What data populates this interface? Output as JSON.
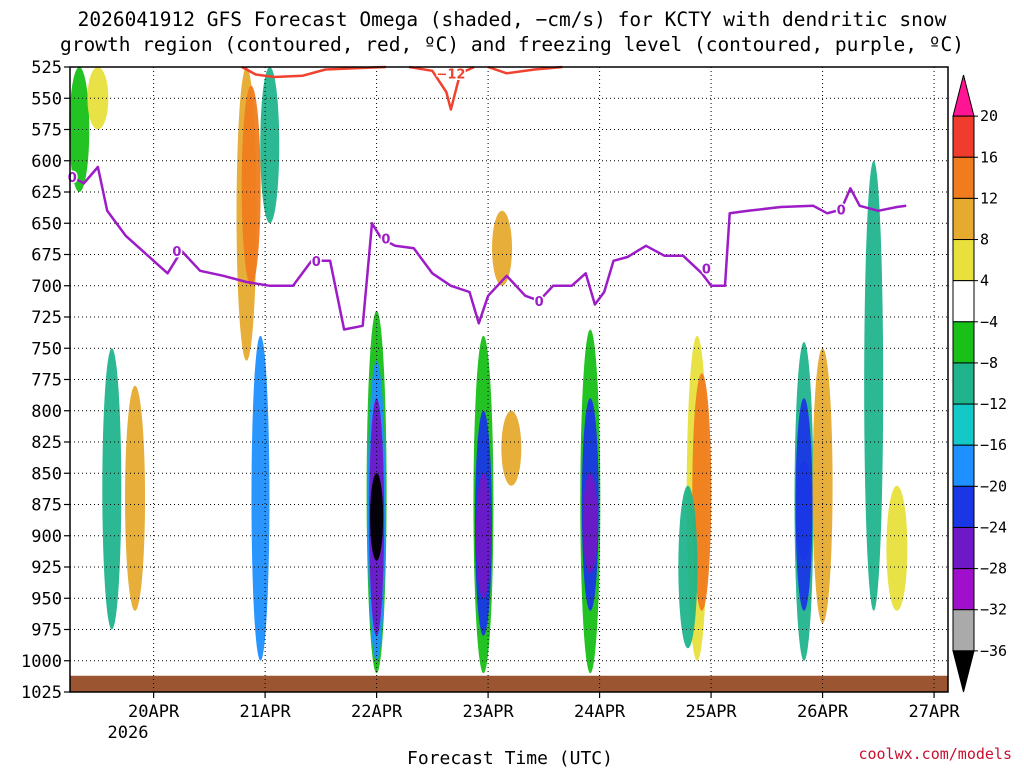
{
  "chart_data": {
    "type": "time-height",
    "title_line1": "2026041912 GFS Forecast Omega (shaded, −cm/s) for KCTY with dendritic snow",
    "title_line2": "growth region (contoured, red, ºC) and freezing level (contoured, purple, ºC)",
    "xlabel": "Forecast Time (UTC)",
    "credit": "coolwx.com/models",
    "year_label": "2026",
    "x_hours_range": [
      -18,
      162
    ],
    "x_ticks": [
      {
        "label": "20APR",
        "h": 0
      },
      {
        "label": "21APR",
        "h": 24
      },
      {
        "label": "22APR",
        "h": 48
      },
      {
        "label": "23APR",
        "h": 72
      },
      {
        "label": "24APR",
        "h": 96
      },
      {
        "label": "25APR",
        "h": 120
      },
      {
        "label": "26APR",
        "h": 144
      },
      {
        "label": "27APR",
        "h": 168
      }
    ],
    "y_range_hpa": [
      525,
      1025
    ],
    "y_ticks": [
      "525",
      "550",
      "575",
      "600",
      "625",
      "650",
      "675",
      "700",
      "725",
      "750",
      "775",
      "800",
      "825",
      "850",
      "875",
      "900",
      "925",
      "950",
      "975",
      "1000",
      "1025"
    ],
    "colorbar": {
      "labels": [
        "20",
        "16",
        "12",
        "8",
        "4",
        "−4",
        "−8",
        "−12",
        "−16",
        "−20",
        "−24",
        "−28",
        "−32",
        "−36"
      ],
      "colors": [
        "#ff1493",
        "#f03c2c",
        "#f07c1e",
        "#e6aa2e",
        "#e8e03c",
        "#ffffff",
        "#18c018",
        "#20b48c",
        "#14c8c8",
        "#1e90ff",
        "#1a37e6",
        "#6e18c8",
        "#a010cc",
        "#aaaaaa",
        "#000000"
      ]
    },
    "omega_regions": [
      {
        "h": -16,
        "p_top": 525,
        "p_bot": 625,
        "value": -8
      },
      {
        "h": -12,
        "p_top": 525,
        "p_bot": 575,
        "value": 4
      },
      {
        "h": -9,
        "p_top": 750,
        "p_bot": 975,
        "value": -12
      },
      {
        "h": -4,
        "p_top": 780,
        "p_bot": 960,
        "value": 8
      },
      {
        "h": 20,
        "p_top": 525,
        "p_bot": 760,
        "value": 8
      },
      {
        "h": 21,
        "p_top": 540,
        "p_bot": 700,
        "value": 12
      },
      {
        "h": 23,
        "p_top": 740,
        "p_bot": 1000,
        "value": -16
      },
      {
        "h": 25,
        "p_top": 525,
        "p_bot": 650,
        "value": -12
      },
      {
        "h": 48,
        "p_top": 720,
        "p_bot": 1010,
        "value": -8
      },
      {
        "h": 48,
        "p_top": 760,
        "p_bot": 1000,
        "value": -16
      },
      {
        "h": 48,
        "p_top": 790,
        "p_bot": 980,
        "value": -28
      },
      {
        "h": 48,
        "p_top": 850,
        "p_bot": 920,
        "value": -36
      },
      {
        "h": 71,
        "p_top": 740,
        "p_bot": 1010,
        "value": -8
      },
      {
        "h": 71,
        "p_top": 800,
        "p_bot": 980,
        "value": -20
      },
      {
        "h": 71,
        "p_top": 850,
        "p_bot": 950,
        "value": -28
      },
      {
        "h": 75,
        "p_top": 640,
        "p_bot": 700,
        "value": 8
      },
      {
        "h": 77,
        "p_top": 800,
        "p_bot": 860,
        "value": 8
      },
      {
        "h": 94,
        "p_top": 735,
        "p_bot": 1010,
        "value": -8
      },
      {
        "h": 94,
        "p_top": 790,
        "p_bot": 960,
        "value": -20
      },
      {
        "h": 94,
        "p_top": 850,
        "p_bot": 930,
        "value": -28
      },
      {
        "h": 117,
        "p_top": 740,
        "p_bot": 1000,
        "value": 4
      },
      {
        "h": 118,
        "p_top": 770,
        "p_bot": 960,
        "value": 12
      },
      {
        "h": 115,
        "p_top": 860,
        "p_bot": 990,
        "value": -12
      },
      {
        "h": 140,
        "p_top": 745,
        "p_bot": 1000,
        "value": -12
      },
      {
        "h": 140,
        "p_top": 790,
        "p_bot": 960,
        "value": -20
      },
      {
        "h": 140,
        "p_top": 840,
        "p_bot": 920,
        "value": -24
      },
      {
        "h": 144,
        "p_top": 750,
        "p_bot": 970,
        "value": 8
      },
      {
        "h": 155,
        "p_top": 600,
        "p_bot": 960,
        "value": -12
      },
      {
        "h": 160,
        "p_top": 860,
        "p_bot": 960,
        "value": 4
      }
    ],
    "freezing_level_0C_hpa": [
      {
        "h": -18,
        "p": 612
      },
      {
        "h": -15,
        "p": 618
      },
      {
        "h": -12,
        "p": 605
      },
      {
        "h": -10,
        "p": 640
      },
      {
        "h": -6,
        "p": 660
      },
      {
        "h": -3,
        "p": 670
      },
      {
        "h": 0,
        "p": 680
      },
      {
        "h": 3,
        "p": 690
      },
      {
        "h": 6,
        "p": 672
      },
      {
        "h": 10,
        "p": 688
      },
      {
        "h": 15,
        "p": 692
      },
      {
        "h": 20,
        "p": 697
      },
      {
        "h": 25,
        "p": 700
      },
      {
        "h": 30,
        "p": 700
      },
      {
        "h": 34,
        "p": 680
      },
      {
        "h": 38,
        "p": 680
      },
      {
        "h": 41,
        "p": 735
      },
      {
        "h": 45,
        "p": 732
      },
      {
        "h": 47,
        "p": 650
      },
      {
        "h": 49,
        "p": 662
      },
      {
        "h": 52,
        "p": 668
      },
      {
        "h": 56,
        "p": 670
      },
      {
        "h": 60,
        "p": 690
      },
      {
        "h": 64,
        "p": 700
      },
      {
        "h": 68,
        "p": 705
      },
      {
        "h": 70,
        "p": 730
      },
      {
        "h": 72,
        "p": 708
      },
      {
        "h": 76,
        "p": 692
      },
      {
        "h": 80,
        "p": 708
      },
      {
        "h": 83,
        "p": 712
      },
      {
        "h": 86,
        "p": 700
      },
      {
        "h": 90,
        "p": 700
      },
      {
        "h": 93,
        "p": 690
      },
      {
        "h": 95,
        "p": 715
      },
      {
        "h": 97,
        "p": 705
      },
      {
        "h": 99,
        "p": 680
      },
      {
        "h": 102,
        "p": 677
      },
      {
        "h": 106,
        "p": 668
      },
      {
        "h": 110,
        "p": 676
      },
      {
        "h": 114,
        "p": 676
      },
      {
        "h": 118,
        "p": 690
      },
      {
        "h": 120,
        "p": 700
      },
      {
        "h": 123,
        "p": 700
      },
      {
        "h": 124,
        "p": 642
      },
      {
        "h": 128,
        "p": 640
      },
      {
        "h": 135,
        "p": 637
      },
      {
        "h": 142,
        "p": 636
      },
      {
        "h": 145,
        "p": 642
      },
      {
        "h": 148,
        "p": 639
      },
      {
        "h": 150,
        "p": 622
      },
      {
        "h": 152,
        "p": 636
      },
      {
        "h": 156,
        "p": 640
      },
      {
        "h": 160,
        "p": 637
      },
      {
        "h": 162,
        "p": 636
      }
    ],
    "dgz_minus12C_hpa": [
      {
        "h": 19,
        "p": 525
      },
      {
        "h": 22,
        "p": 531
      },
      {
        "h": 26,
        "p": 533
      },
      {
        "h": 32,
        "p": 532
      },
      {
        "h": 37,
        "p": 527
      },
      {
        "h": 50,
        "p": 525
      }
    ],
    "dgz_minus12C_b_hpa": [
      {
        "h": 55,
        "p": 525
      },
      {
        "h": 60,
        "p": 528
      },
      {
        "h": 63,
        "p": 545
      },
      {
        "h": 64,
        "p": 559
      },
      {
        "h": 66,
        "p": 530
      },
      {
        "h": 69,
        "p": 525
      }
    ],
    "dgz_minus12C_c_hpa": [
      {
        "h": 72,
        "p": 525
      },
      {
        "h": 76,
        "p": 530
      },
      {
        "h": 82,
        "p": 527
      },
      {
        "h": 88,
        "p": 525
      }
    ],
    "contour_labels": [
      {
        "text": "−12",
        "h": 64,
        "p": 530
      },
      {
        "text": "0",
        "h": -17.5,
        "p": 613
      },
      {
        "text": "0",
        "h": 5,
        "p": 672
      },
      {
        "text": "0",
        "h": 35,
        "p": 680
      },
      {
        "text": "0",
        "h": 50,
        "p": 662
      },
      {
        "text": "0",
        "h": 83,
        "p": 712
      },
      {
        "text": "0",
        "h": 119,
        "p": 686
      },
      {
        "text": "0",
        "h": 148,
        "p": 639
      }
    ],
    "terrain_top_hpa": 1012
  }
}
